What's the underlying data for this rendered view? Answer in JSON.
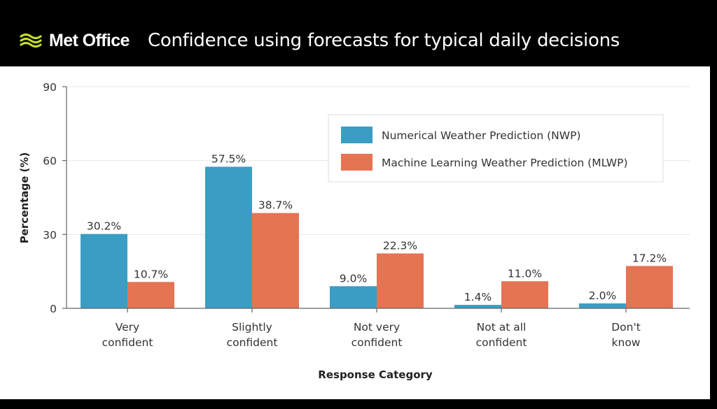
{
  "header": {
    "brand": "Met Office",
    "title": "Confidence using forecasts for typical daily decisions"
  },
  "colors": {
    "nwp": "#3a9ec4",
    "mlwp": "#e57453",
    "header_bg": "#000000",
    "logo": "#c4dc2c"
  },
  "chart_data": {
    "type": "bar",
    "title": "Confidence using forecasts for typical daily decisions",
    "xlabel": "Response Category",
    "ylabel": "Percentage (%)",
    "ylim": [
      0,
      90
    ],
    "yticks": [
      0,
      30,
      60,
      90
    ],
    "grid": true,
    "legend_position": "top-right",
    "categories": [
      [
        "Very",
        "confident"
      ],
      [
        "Slightly",
        "confident"
      ],
      [
        "Not very",
        "confident"
      ],
      [
        "Not at all",
        "confident"
      ],
      [
        "Don't",
        "know"
      ]
    ],
    "series": [
      {
        "name": "Numerical Weather Prediction (NWP)",
        "values": [
          30.2,
          57.5,
          9.0,
          1.4,
          2.0
        ],
        "labels": [
          "30.2%",
          "57.5%",
          "9.0%",
          "1.4%",
          "2.0%"
        ]
      },
      {
        "name": "Machine Learning Weather Prediction (MLWP)",
        "values": [
          10.7,
          38.7,
          22.3,
          11.0,
          17.2
        ],
        "labels": [
          "10.7%",
          "38.7%",
          "22.3%",
          "11.0%",
          "17.2%"
        ]
      }
    ]
  }
}
